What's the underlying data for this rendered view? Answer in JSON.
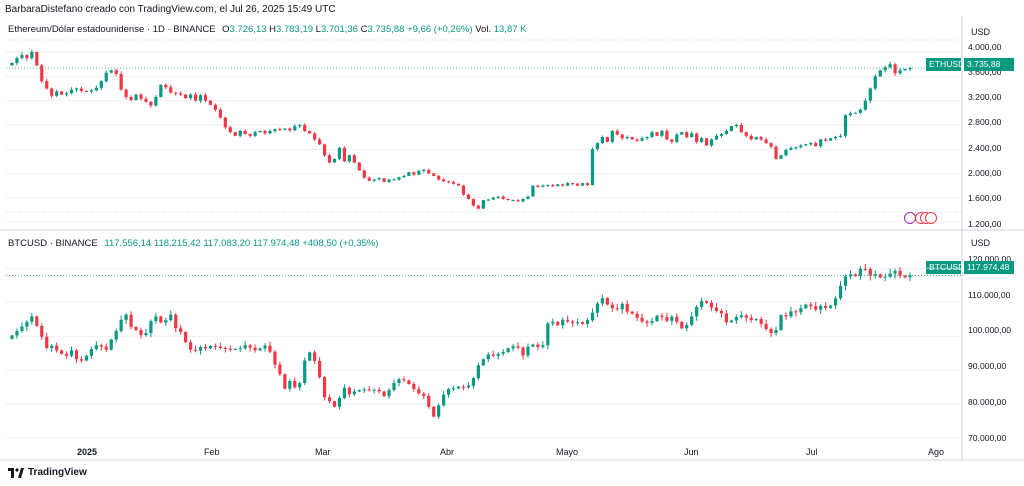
{
  "credit": "BarbaraDistefano creado con TradingView.com, el Jul 26, 2025 15:49 UTC",
  "brand": "TradingView",
  "currency_label": "USD",
  "x_labels": [
    "2025",
    "Feb",
    "Mar",
    "Abr",
    "Mayo",
    "Jun",
    "Jul",
    "Ago"
  ],
  "colors": {
    "up": "#089981",
    "down": "#f23645",
    "grid": "#e0e3eb",
    "text": "#131722"
  },
  "chart_data": [
    {
      "type": "candlestick",
      "symbol": "ETHUSD",
      "title": "Ethereum/Dólar estadounidense · 1D · BINANCE",
      "ohlc_labels": {
        "o": "O",
        "h": "H",
        "l": "L",
        "c": "C",
        "vol": "Vol."
      },
      "ohlc_values": {
        "o": "3.726,13",
        "h": "3.783,19",
        "l": "3.701,36",
        "c": "3.735,88",
        "change": "+9,66 (+0,26%)",
        "vol": "13,87 K"
      },
      "last_price_label": "3.735,88",
      "y_ticks": [
        "4.000,00",
        "3.600,00",
        "3.200,00",
        "2.800,00",
        "2.400,00",
        "2.000,00",
        "1.600,00",
        "1.200,00"
      ],
      "ylim": [
        1200,
        4100
      ],
      "closes": [
        3820,
        3900,
        3950,
        3900,
        4000,
        3780,
        3520,
        3400,
        3280,
        3350,
        3300,
        3320,
        3380,
        3400,
        3360,
        3350,
        3370,
        3410,
        3520,
        3660,
        3700,
        3640,
        3380,
        3260,
        3210,
        3300,
        3230,
        3180,
        3120,
        3260,
        3460,
        3420,
        3330,
        3320,
        3300,
        3240,
        3300,
        3200,
        3290,
        3200,
        3130,
        3050,
        2920,
        2760,
        2680,
        2620,
        2700,
        2650,
        2620,
        2680,
        2700,
        2660,
        2700,
        2730,
        2720,
        2740,
        2710,
        2780,
        2800,
        2700,
        2660,
        2560,
        2480,
        2300,
        2180,
        2240,
        2420,
        2200,
        2300,
        2180,
        2050,
        1930,
        1880,
        1900,
        1920,
        1860,
        1900,
        1900,
        1940,
        1960,
        2020,
        1980,
        2040,
        2060,
        2000,
        1960,
        1900,
        1870,
        1860,
        1830,
        1800,
        1650,
        1580,
        1470,
        1420,
        1560,
        1570,
        1600,
        1620,
        1580,
        1560,
        1560,
        1540,
        1580,
        1620,
        1800,
        1780,
        1800,
        1810,
        1790,
        1820,
        1800,
        1840,
        1830,
        1800,
        1840,
        1810,
        2400,
        2500,
        2600,
        2520,
        2700,
        2640,
        2580,
        2600,
        2560,
        2540,
        2580,
        2600,
        2680,
        2620,
        2700,
        2560,
        2520,
        2640,
        2680,
        2600,
        2660,
        2520,
        2580,
        2460,
        2560,
        2620,
        2650,
        2700,
        2780,
        2800,
        2680,
        2620,
        2560,
        2600,
        2560,
        2500,
        2440,
        2240,
        2300,
        2390,
        2420,
        2430,
        2460,
        2480,
        2500,
        2450,
        2560,
        2540,
        2580,
        2600,
        2620,
        2960,
        2990,
        3000,
        3050,
        3200,
        3400,
        3600,
        3700,
        3750,
        3800,
        3650,
        3700,
        3720,
        3736
      ],
      "y_values_unit": "USD"
    },
    {
      "type": "candlestick",
      "symbol": "BTCUSD",
      "title": "BTCUSD · BINANCE",
      "ohlc_values": {
        "o": "117.556,14",
        "h": "118.215,42",
        "l": "117.083,20",
        "c": "117.974,48",
        "change": "+408,50 (+0,35%)"
      },
      "last_price_label": "117.974,48",
      "y_ticks": [
        "120.000,00",
        "110.000,00",
        "100.000,00",
        "90.000,00",
        "80.000,00",
        "70.000,00"
      ],
      "ylim": [
        70000,
        123000
      ],
      "closes": [
        100200,
        101500,
        102800,
        104200,
        105800,
        103000,
        99800,
        96500,
        97200,
        95800,
        94800,
        94200,
        95800,
        93200,
        92800,
        94200,
        96200,
        97300,
        96900,
        96000,
        99000,
        101500,
        104800,
        106300,
        102700,
        101800,
        100300,
        100900,
        104400,
        105800,
        104000,
        104700,
        106300,
        102300,
        101200,
        98200,
        96000,
        95700,
        96800,
        96400,
        97100,
        96900,
        96500,
        96300,
        96100,
        96200,
        96400,
        97300,
        96600,
        95800,
        96400,
        97200,
        95400,
        91600,
        88800,
        84500,
        86800,
        84900,
        86200,
        92800,
        95200,
        92700,
        87900,
        82000,
        80800,
        79200,
        81800,
        84800,
        82900,
        83700,
        84100,
        84300,
        84100,
        84200,
        83700,
        82300,
        84100,
        86200,
        87300,
        87000,
        85900,
        84400,
        83100,
        82400,
        79200,
        76300,
        79600,
        82800,
        84400,
        84600,
        85100,
        84900,
        85400,
        87600,
        91400,
        93200,
        94600,
        94200,
        94800,
        95300,
        96400,
        97000,
        96600,
        94300,
        96900,
        97500,
        96800,
        97300,
        103700,
        104200,
        103200,
        104800,
        104300,
        103900,
        104100,
        103600,
        104700,
        106900,
        109600,
        111200,
        109300,
        108200,
        107900,
        109500,
        107200,
        106600,
        105400,
        104300,
        103900,
        104400,
        106000,
        105600,
        104500,
        105700,
        104200,
        102300,
        103300,
        105800,
        108600,
        110300,
        109800,
        108400,
        107400,
        106700,
        104100,
        104600,
        105600,
        106100,
        105400,
        104700,
        105000,
        103600,
        102100,
        100900,
        101800,
        106200,
        105800,
        107300,
        107000,
        108200,
        109300,
        108800,
        107800,
        108900,
        108300,
        109000,
        111100,
        114800,
        117600,
        118200,
        117700,
        119800,
        119700,
        117800,
        118200,
        117300,
        117500,
        118400,
        119200,
        117800,
        117300,
        117900
      ],
      "y_values_unit": "USD"
    }
  ]
}
